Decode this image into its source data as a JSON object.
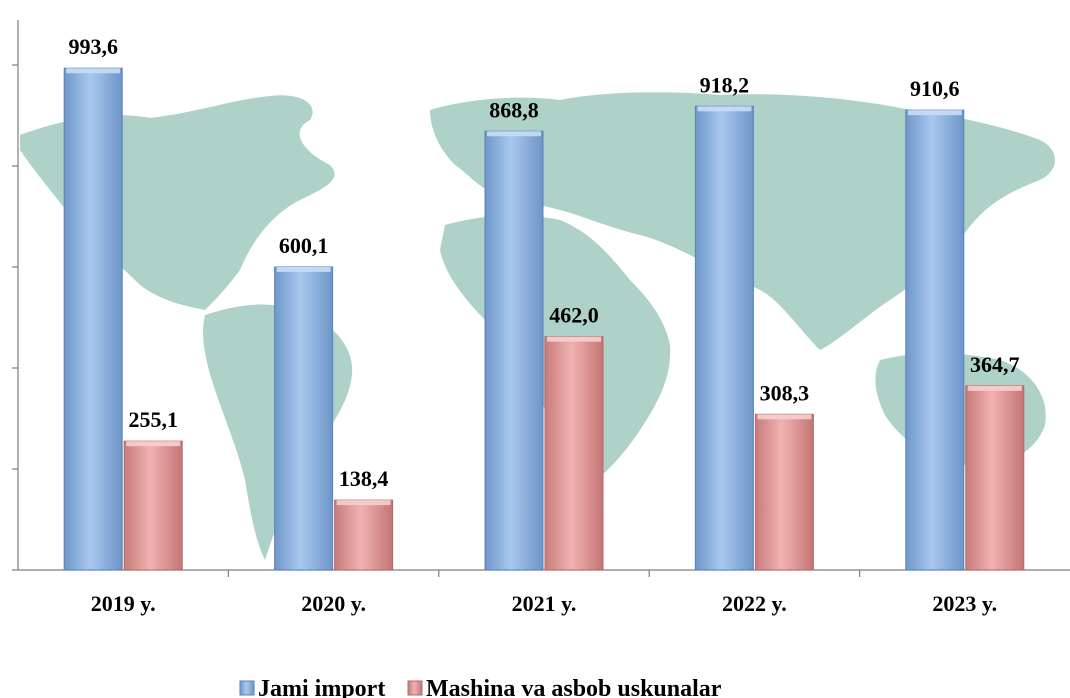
{
  "chart_data": {
    "type": "bar",
    "title": "",
    "xlabel": "",
    "ylabel": "",
    "categories": [
      "2019 y.",
      "2020 y.",
      "2021 y.",
      "2022 y.",
      "2023 y."
    ],
    "series": [
      {
        "name": "Jami import",
        "values": [
          993.6,
          600.1,
          868.8,
          918.2,
          910.6
        ],
        "labels": [
          "993,6",
          "600,1",
          "868,8",
          "918,2",
          "910,6"
        ],
        "color": "#8db4e2"
      },
      {
        "name": "Mashina va asbob uskunalar",
        "values": [
          255.1,
          138.4,
          462.0,
          308.3,
          364.7
        ],
        "labels": [
          "255,1",
          "138,4",
          "462,0",
          "308,3",
          "364,7"
        ],
        "color": "#e6a1a0"
      }
    ],
    "ylim": [
      0,
      1100
    ],
    "grid": false,
    "legend_position": "bottom",
    "background": "world-map"
  }
}
